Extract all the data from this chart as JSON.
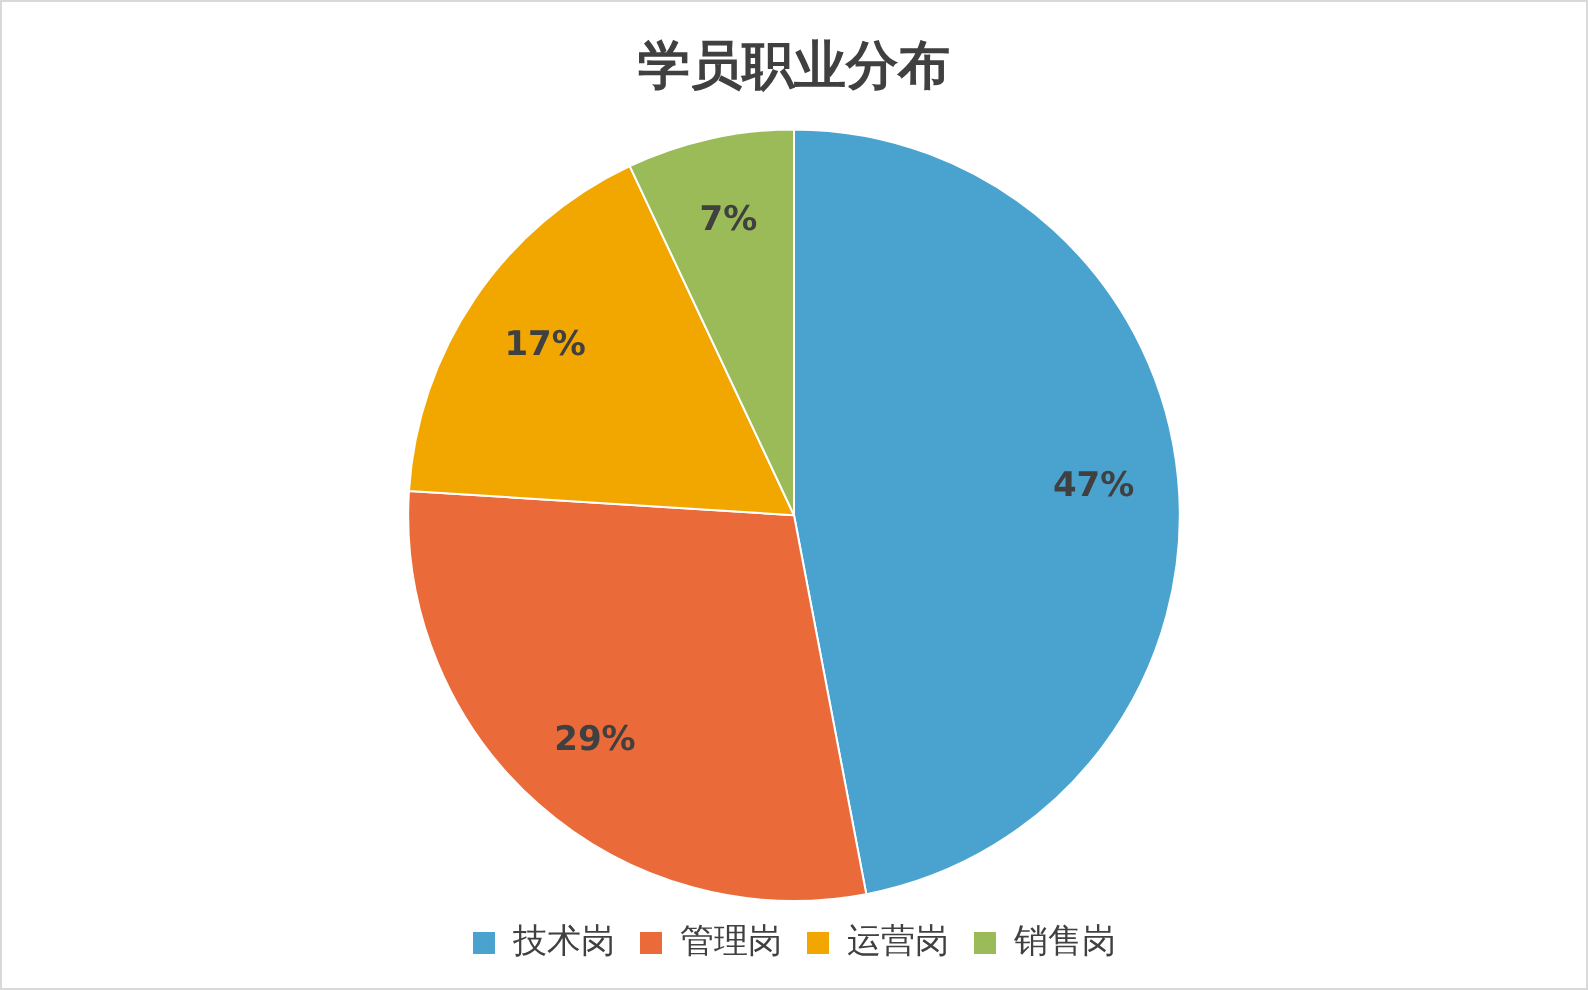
{
  "chart_data": {
    "type": "pie",
    "title": "学员职业分布",
    "categories": [
      "技术岗",
      "管理岗",
      "运营岗",
      "销售岗"
    ],
    "values": [
      47,
      29,
      17,
      7
    ],
    "value_labels": [
      "47%",
      "29%",
      "17%",
      "7%"
    ],
    "colors": [
      "#4aa3cf",
      "#ea6a3a",
      "#f2a700",
      "#9bbb59"
    ],
    "legend": "bottom"
  }
}
